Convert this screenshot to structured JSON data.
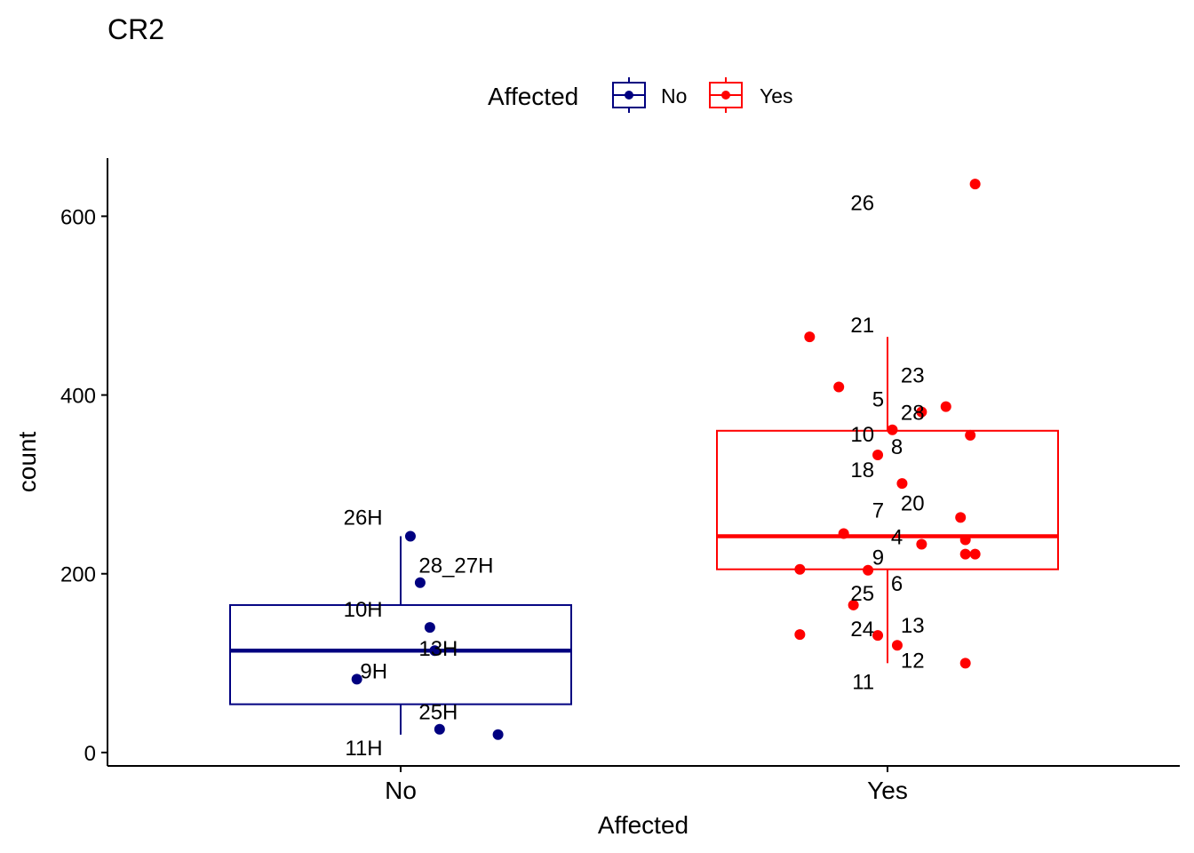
{
  "colors": {
    "No": "#000080",
    "Yes": "#ff0000",
    "axis": "#000000"
  },
  "chart_data": {
    "type": "boxplot",
    "title": "CR2",
    "xlabel": "Affected",
    "ylabel": "count",
    "ylim": [
      -15,
      665
    ],
    "yticks": [
      0,
      200,
      400,
      600
    ],
    "legend": {
      "title": "Affected",
      "entries": [
        "No",
        "Yes"
      ],
      "position": "top"
    },
    "categories": [
      "No",
      "Yes"
    ],
    "groups": [
      {
        "name": "No",
        "box": {
          "min": 20,
          "q1": 54,
          "median": 114,
          "q3": 165,
          "max": 242
        },
        "points": [
          {
            "x": 0.02,
            "y": 242
          },
          {
            "x": 0.04,
            "y": 190
          },
          {
            "x": 0.06,
            "y": 140
          },
          {
            "x": 0.07,
            "y": 114
          },
          {
            "x": -0.09,
            "y": 82
          },
          {
            "x": 0.08,
            "y": 26
          },
          {
            "x": 0.2,
            "y": 20
          }
        ],
        "labels": [
          {
            "text": "26H",
            "x": -0.07,
            "y": 264
          },
          {
            "text": "28_27H",
            "x": 0.07,
            "y": 210
          },
          {
            "text": "10H",
            "x": -0.07,
            "y": 161
          },
          {
            "text": "13H",
            "x": 0.07,
            "y": 117
          },
          {
            "text": "9H",
            "x": -0.06,
            "y": 92
          },
          {
            "text": "25H",
            "x": 0.07,
            "y": 46
          },
          {
            "text": "11H",
            "x": -0.07,
            "y": 6
          }
        ]
      },
      {
        "name": "Yes",
        "box": {
          "min": 100,
          "q1": 205,
          "median": 242,
          "q3": 360,
          "max": 465
        },
        "points": [
          {
            "x": 0.18,
            "y": 636
          },
          {
            "x": -0.16,
            "y": 465
          },
          {
            "x": -0.1,
            "y": 409
          },
          {
            "x": 0.12,
            "y": 387
          },
          {
            "x": 0.07,
            "y": 381
          },
          {
            "x": 0.01,
            "y": 361
          },
          {
            "x": 0.17,
            "y": 355
          },
          {
            "x": -0.02,
            "y": 333
          },
          {
            "x": 0.03,
            "y": 301
          },
          {
            "x": 0.15,
            "y": 263
          },
          {
            "x": -0.09,
            "y": 245
          },
          {
            "x": 0.16,
            "y": 238
          },
          {
            "x": 0.07,
            "y": 233
          },
          {
            "x": 0.16,
            "y": 222
          },
          {
            "x": 0.18,
            "y": 222
          },
          {
            "x": -0.18,
            "y": 205
          },
          {
            "x": -0.04,
            "y": 204
          },
          {
            "x": -0.07,
            "y": 165
          },
          {
            "x": -0.18,
            "y": 132
          },
          {
            "x": -0.02,
            "y": 131
          },
          {
            "x": 0.02,
            "y": 120
          },
          {
            "x": 0.16,
            "y": 100
          }
        ],
        "labels": [
          {
            "text": "26",
            "x": -0.06,
            "y": 616
          },
          {
            "text": "21",
            "x": -0.06,
            "y": 479
          },
          {
            "text": "23",
            "x": 0.06,
            "y": 423
          },
          {
            "text": "5",
            "x": -0.04,
            "y": 396
          },
          {
            "text": "28",
            "x": 0.06,
            "y": 381
          },
          {
            "text": "10",
            "x": -0.06,
            "y": 357
          },
          {
            "text": "8",
            "x": 0.04,
            "y": 343
          },
          {
            "text": "18",
            "x": -0.06,
            "y": 317
          },
          {
            "text": "20",
            "x": 0.06,
            "y": 280
          },
          {
            "text": "7",
            "x": -0.04,
            "y": 272
          },
          {
            "text": "4",
            "x": 0.04,
            "y": 242
          },
          {
            "text": "9",
            "x": -0.04,
            "y": 219
          },
          {
            "text": "6",
            "x": 0.04,
            "y": 190
          },
          {
            "text": "25",
            "x": -0.06,
            "y": 179
          },
          {
            "text": "13",
            "x": 0.06,
            "y": 143
          },
          {
            "text": "24",
            "x": -0.06,
            "y": 139
          },
          {
            "text": "12",
            "x": 0.06,
            "y": 104
          },
          {
            "text": "11",
            "x": -0.06,
            "y": 80
          }
        ]
      }
    ]
  }
}
